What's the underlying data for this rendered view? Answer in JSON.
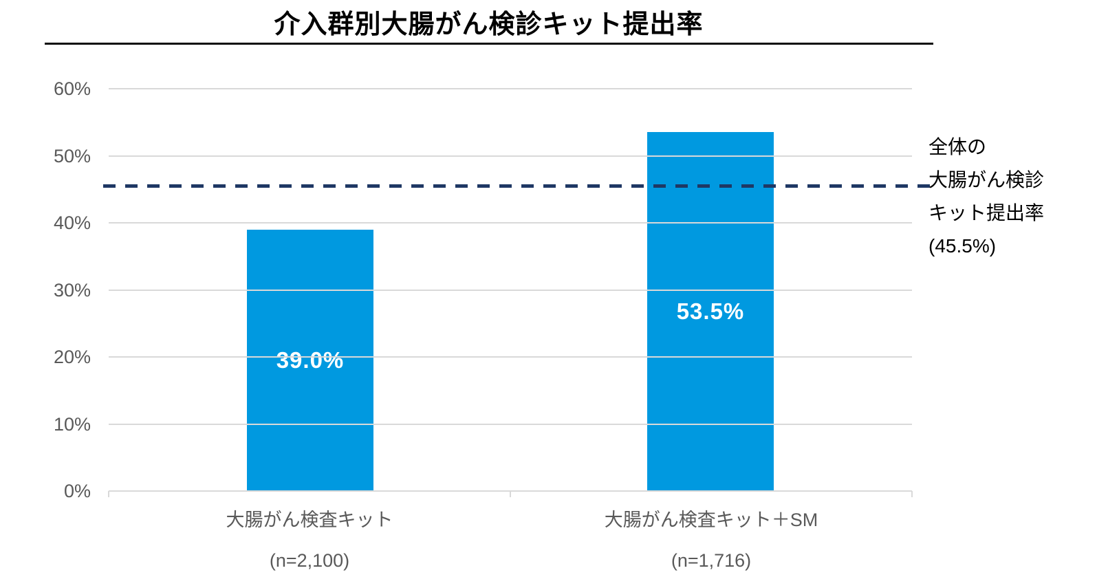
{
  "title": "介入群別大腸がん検診キット提出率",
  "chart_data": {
    "type": "bar",
    "categories": [
      "大腸がん検査キット",
      "大腸がん検査キット＋SM"
    ],
    "category_sublabels": [
      "(n=2,100)",
      "(n=1,716)"
    ],
    "values": [
      39.0,
      53.5
    ],
    "value_labels": [
      "39.0%",
      "53.5%"
    ],
    "ylim": [
      0,
      60
    ],
    "ytick_values": [
      0,
      10,
      20,
      30,
      40,
      50,
      60
    ],
    "ytick_labels": [
      "0%",
      "10%",
      "20%",
      "30%",
      "40%",
      "50%",
      "60%"
    ],
    "grid": true,
    "legend": "none",
    "reference_line": {
      "value": 45.5,
      "style": "dashed",
      "color": "#1f3864",
      "annotation_lines": [
        "全体の",
        "大腸がん検診",
        "キット提出率",
        "(45.5%)"
      ]
    },
    "bar_color": "#0099e0",
    "value_label_color": "#ffffff",
    "gridline_color": "#d9d9d9",
    "axis_text_color": "#595959"
  }
}
